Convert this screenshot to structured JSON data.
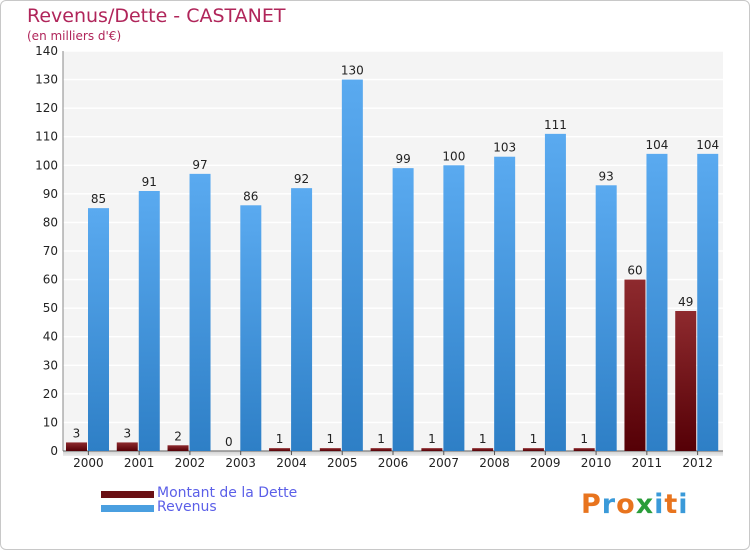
{
  "title": "Revenus/Dette - CASTANET",
  "subtitle": "(en milliers d'€)",
  "logo": {
    "text": "Proxiti",
    "letters": [
      "P",
      "r",
      "o",
      "x",
      "i",
      "t",
      "i"
    ],
    "colors": [
      "#e8741e",
      "#3a9ad9",
      "#e8741e",
      "#2a9d3a",
      "#3a9ad9",
      "#e8741e",
      "#3a9ad9"
    ]
  },
  "colors": {
    "dette": "#7a1418",
    "revenus": "#4a9fe0",
    "title": "#b0255a",
    "legend_text": "#5b5fe8"
  },
  "chart_data": {
    "type": "bar",
    "title": "Revenus/Dette - CASTANET",
    "ylabel": "(en milliers d'€)",
    "xlabel": "",
    "categories": [
      "2000",
      "2001",
      "2002",
      "2003",
      "2004",
      "2005",
      "2006",
      "2007",
      "2008",
      "2009",
      "2010",
      "2011",
      "2012"
    ],
    "series": [
      {
        "name": "Montant de la Dette",
        "values": [
          3,
          3,
          2,
          0,
          1,
          1,
          1,
          1,
          1,
          1,
          1,
          60,
          49
        ]
      },
      {
        "name": "Revenus",
        "values": [
          85,
          91,
          97,
          86,
          92,
          130,
          99,
          100,
          103,
          111,
          93,
          104,
          104
        ]
      }
    ],
    "ylim": [
      0,
      140
    ],
    "yticks": [
      0,
      10,
      20,
      30,
      40,
      50,
      60,
      70,
      80,
      90,
      100,
      110,
      120,
      130,
      140
    ],
    "grid": true,
    "legend_position": "bottom-left"
  }
}
